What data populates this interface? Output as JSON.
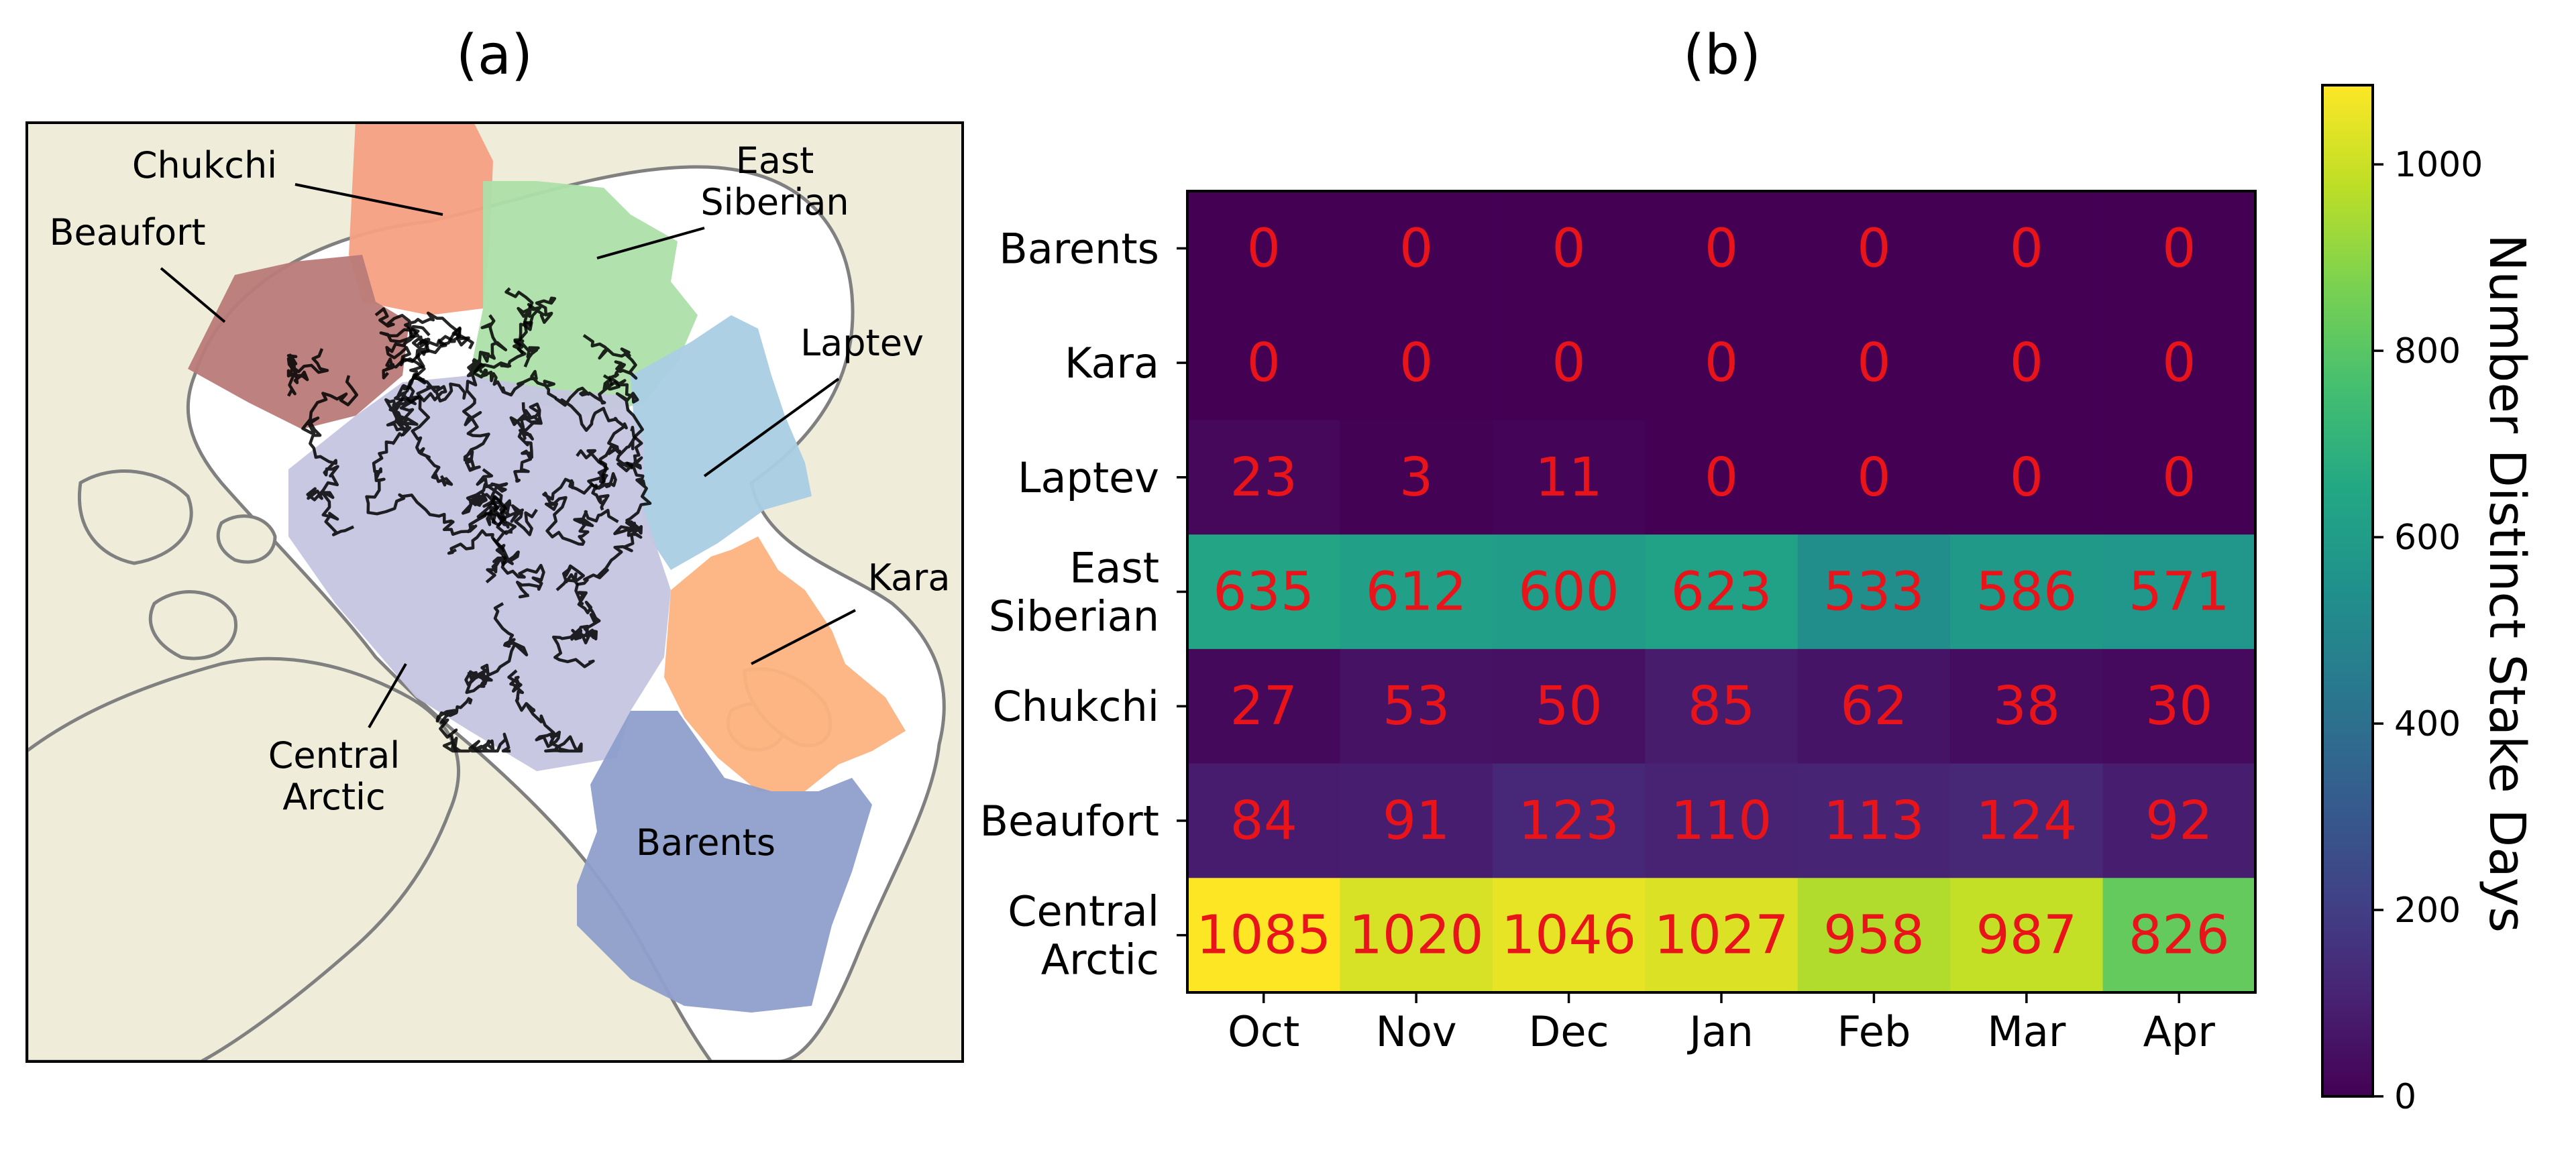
{
  "panel_a": {
    "title": "(a)",
    "region_labels": [
      {
        "name": "Chukchi",
        "lines": [
          "Chukchi"
        ]
      },
      {
        "name": "East Siberian",
        "lines": [
          "East",
          "Siberian"
        ]
      },
      {
        "name": "Beaufort",
        "lines": [
          "Beaufort"
        ]
      },
      {
        "name": "Laptev",
        "lines": [
          "Laptev"
        ]
      },
      {
        "name": "Kara",
        "lines": [
          "Kara"
        ]
      },
      {
        "name": "Central Arctic",
        "lines": [
          "Central",
          "Arctic"
        ]
      },
      {
        "name": "Barents",
        "lines": [
          "Barents"
        ]
      }
    ],
    "colors": {
      "land": "#efedda",
      "coast": "#808080",
      "ocean": "#ffffff",
      "tracks": "#000000",
      "Chukchi": "#f5a083",
      "East Siberian": "#addfa9",
      "Beaufort": "#b97b78",
      "Laptev": "#a9cde4",
      "Kara": "#fdb27f",
      "Central Arctic": "#c6c5e2",
      "Barents": "#8e9fcb"
    }
  },
  "chart_data": {
    "type": "heatmap",
    "title": "(b)",
    "categories_x": [
      "Oct",
      "Nov",
      "Dec",
      "Jan",
      "Feb",
      "Mar",
      "Apr"
    ],
    "categories_y": [
      {
        "name": "Barents",
        "lines": [
          "Barents"
        ]
      },
      {
        "name": "Kara",
        "lines": [
          "Kara"
        ]
      },
      {
        "name": "Laptev",
        "lines": [
          "Laptev"
        ]
      },
      {
        "name": "East Siberian",
        "lines": [
          "East",
          "Siberian"
        ]
      },
      {
        "name": "Chukchi",
        "lines": [
          "Chukchi"
        ]
      },
      {
        "name": "Beaufort",
        "lines": [
          "Beaufort"
        ]
      },
      {
        "name": "Central Arctic",
        "lines": [
          "Central",
          "Arctic"
        ]
      }
    ],
    "values": [
      [
        0,
        0,
        0,
        0,
        0,
        0,
        0
      ],
      [
        0,
        0,
        0,
        0,
        0,
        0,
        0
      ],
      [
        23,
        3,
        11,
        0,
        0,
        0,
        0
      ],
      [
        635,
        612,
        600,
        623,
        533,
        586,
        571
      ],
      [
        27,
        53,
        50,
        85,
        62,
        38,
        30
      ],
      [
        84,
        91,
        123,
        110,
        113,
        124,
        92
      ],
      [
        1085,
        1020,
        1046,
        1027,
        958,
        987,
        826
      ]
    ],
    "colormap": "viridis",
    "annotation_color": "#e8141a",
    "colorbar": {
      "label": "Number Distinct Stake Days",
      "range": [
        0,
        1085
      ],
      "ticks": [
        0,
        200,
        400,
        600,
        800,
        1000
      ]
    }
  }
}
